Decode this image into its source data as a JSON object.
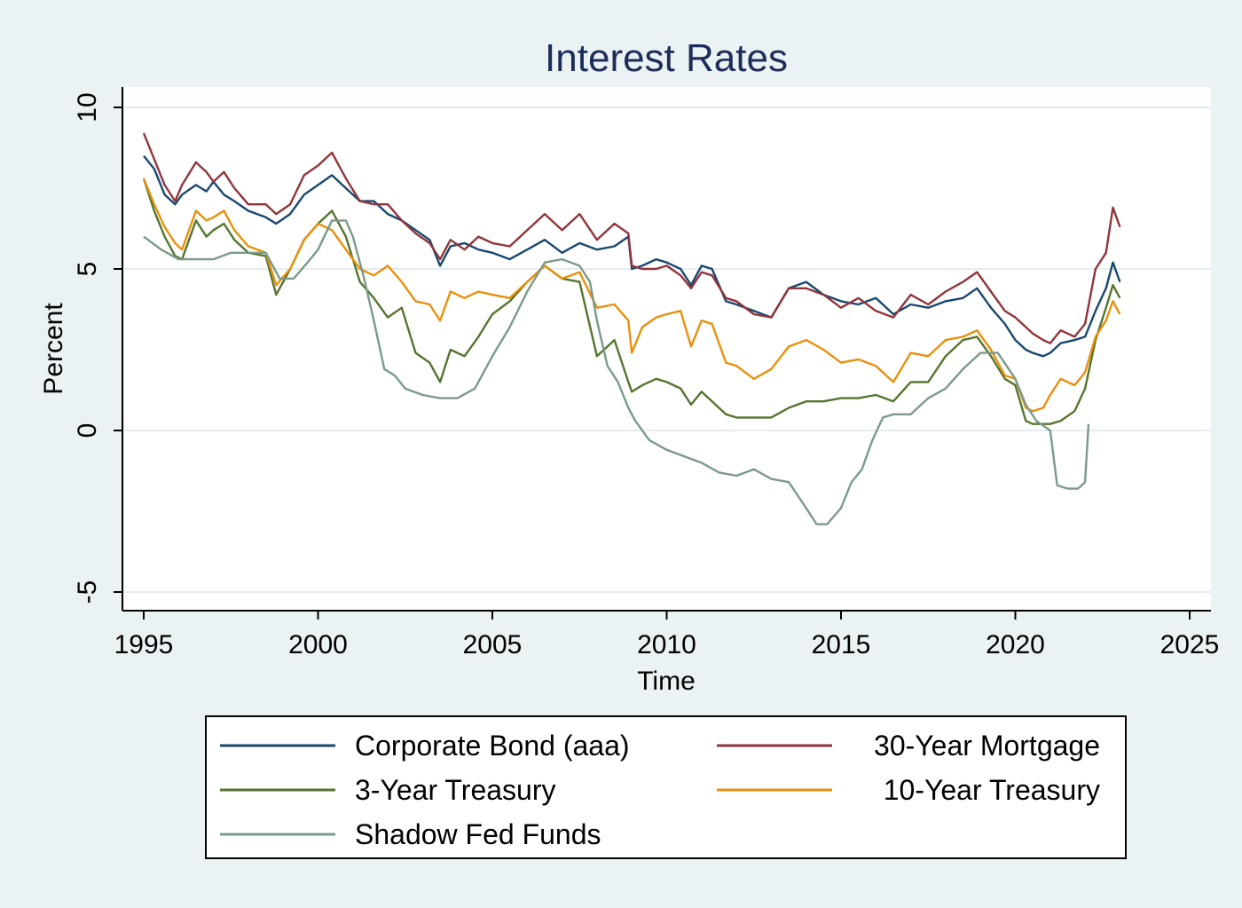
{
  "chart_data": {
    "type": "line",
    "title": "Interest Rates",
    "xlabel": "Time",
    "ylabel": "Percent",
    "xlim": [
      1995,
      2025
    ],
    "ylim": [
      -5,
      10
    ],
    "x_ticks": [
      1995,
      2000,
      2005,
      2010,
      2015,
      2020,
      2025
    ],
    "y_ticks": [
      -5,
      0,
      5,
      10
    ],
    "grid": "horizontal",
    "legend_position": "bottom",
    "background": "#eaf2f3",
    "plot_background": "#ffffff",
    "series": [
      {
        "name": "Corporate Bond (aaa)",
        "color": "#1a476f",
        "x": [
          1995.0,
          1995.3,
          1995.6,
          1995.9,
          1996.1,
          1996.5,
          1996.8,
          1997.0,
          1997.3,
          1997.6,
          1998.0,
          1998.5,
          1998.8,
          1999.2,
          1999.6,
          2000.0,
          2000.4,
          2000.8,
          2001.2,
          2001.6,
          2002.0,
          2002.4,
          2002.8,
          2003.2,
          2003.5,
          2003.8,
          2004.2,
          2004.6,
          2005.0,
          2005.5,
          2006.0,
          2006.5,
          2007.0,
          2007.5,
          2008.0,
          2008.5,
          2008.9,
          2009.0,
          2009.3,
          2009.7,
          2010.0,
          2010.4,
          2010.7,
          2011.0,
          2011.3,
          2011.7,
          2012.0,
          2012.5,
          2013.0,
          2013.5,
          2014.0,
          2014.5,
          2015.0,
          2015.5,
          2016.0,
          2016.5,
          2017.0,
          2017.5,
          2018.0,
          2018.5,
          2018.9,
          2019.3,
          2019.7,
          2020.0,
          2020.3,
          2020.5,
          2020.8,
          2021.0,
          2021.3,
          2021.7,
          2022.0,
          2022.3,
          2022.6,
          2022.8,
          2023.0
        ],
        "y": [
          8.5,
          8.1,
          7.3,
          7.0,
          7.3,
          7.6,
          7.4,
          7.7,
          7.3,
          7.1,
          6.8,
          6.6,
          6.4,
          6.7,
          7.3,
          7.6,
          7.9,
          7.5,
          7.1,
          7.1,
          6.7,
          6.5,
          6.2,
          5.9,
          5.1,
          5.7,
          5.8,
          5.6,
          5.5,
          5.3,
          5.6,
          5.9,
          5.5,
          5.8,
          5.6,
          5.7,
          6.0,
          5.0,
          5.1,
          5.3,
          5.2,
          5.0,
          4.5,
          5.1,
          5.0,
          4.0,
          3.9,
          3.7,
          3.5,
          4.4,
          4.6,
          4.2,
          4.0,
          3.9,
          4.1,
          3.6,
          3.9,
          3.8,
          4.0,
          4.1,
          4.4,
          3.8,
          3.3,
          2.8,
          2.5,
          2.4,
          2.3,
          2.4,
          2.7,
          2.8,
          2.9,
          3.7,
          4.4,
          5.2,
          4.6
        ]
      },
      {
        "name": "30-Year Mortgage",
        "color": "#90353b",
        "x": [
          1995.0,
          1995.3,
          1995.6,
          1995.9,
          1996.1,
          1996.5,
          1996.8,
          1997.0,
          1997.3,
          1997.6,
          1998.0,
          1998.5,
          1998.8,
          1999.2,
          1999.6,
          2000.0,
          2000.4,
          2000.8,
          2001.2,
          2001.6,
          2002.0,
          2002.4,
          2002.8,
          2003.2,
          2003.5,
          2003.8,
          2004.2,
          2004.6,
          2005.0,
          2005.5,
          2006.0,
          2006.5,
          2007.0,
          2007.5,
          2008.0,
          2008.5,
          2008.9,
          2009.0,
          2009.3,
          2009.7,
          2010.0,
          2010.4,
          2010.7,
          2011.0,
          2011.3,
          2011.7,
          2012.0,
          2012.5,
          2013.0,
          2013.5,
          2014.0,
          2014.5,
          2015.0,
          2015.5,
          2016.0,
          2016.5,
          2017.0,
          2017.5,
          2018.0,
          2018.5,
          2018.9,
          2019.3,
          2019.7,
          2020.0,
          2020.3,
          2020.5,
          2020.8,
          2021.0,
          2021.3,
          2021.7,
          2022.0,
          2022.3,
          2022.6,
          2022.8,
          2023.0
        ],
        "y": [
          9.2,
          8.4,
          7.6,
          7.1,
          7.6,
          8.3,
          8.0,
          7.7,
          8.0,
          7.5,
          7.0,
          7.0,
          6.7,
          7.0,
          7.9,
          8.2,
          8.6,
          7.8,
          7.1,
          7.0,
          7.0,
          6.5,
          6.1,
          5.8,
          5.3,
          5.9,
          5.6,
          6.0,
          5.8,
          5.7,
          6.2,
          6.7,
          6.2,
          6.7,
          5.9,
          6.4,
          6.1,
          5.1,
          5.0,
          5.0,
          5.1,
          4.8,
          4.4,
          4.9,
          4.8,
          4.1,
          4.0,
          3.6,
          3.5,
          4.4,
          4.4,
          4.2,
          3.8,
          4.1,
          3.7,
          3.5,
          4.2,
          3.9,
          4.3,
          4.6,
          4.9,
          4.3,
          3.7,
          3.5,
          3.2,
          3.0,
          2.8,
          2.7,
          3.1,
          2.9,
          3.3,
          5.0,
          5.5,
          6.9,
          6.3
        ]
      },
      {
        "name": "3-Year Treasury",
        "color": "#55752f",
        "x": [
          1995.0,
          1995.3,
          1995.6,
          1995.9,
          1996.1,
          1996.5,
          1996.8,
          1997.0,
          1997.3,
          1997.6,
          1998.0,
          1998.5,
          1998.8,
          1999.2,
          1999.6,
          2000.0,
          2000.4,
          2000.8,
          2001.2,
          2001.6,
          2002.0,
          2002.4,
          2002.8,
          2003.2,
          2003.5,
          2003.8,
          2004.2,
          2004.6,
          2005.0,
          2005.5,
          2006.0,
          2006.5,
          2007.0,
          2007.5,
          2008.0,
          2008.5,
          2008.9,
          2009.0,
          2009.3,
          2009.7,
          2010.0,
          2010.4,
          2010.7,
          2011.0,
          2011.3,
          2011.7,
          2012.0,
          2012.5,
          2013.0,
          2013.5,
          2014.0,
          2014.5,
          2015.0,
          2015.5,
          2016.0,
          2016.5,
          2017.0,
          2017.5,
          2018.0,
          2018.5,
          2018.9,
          2019.3,
          2019.7,
          2020.0,
          2020.3,
          2020.5,
          2020.8,
          2021.0,
          2021.3,
          2021.7,
          2022.0,
          2022.3,
          2022.6,
          2022.8,
          2023.0
        ],
        "y": [
          7.8,
          6.8,
          6.0,
          5.4,
          5.3,
          6.5,
          6.0,
          6.2,
          6.4,
          5.9,
          5.5,
          5.4,
          4.2,
          5.0,
          5.9,
          6.4,
          6.8,
          6.0,
          4.6,
          4.1,
          3.5,
          3.8,
          2.4,
          2.1,
          1.5,
          2.5,
          2.3,
          2.9,
          3.6,
          4.0,
          4.6,
          5.1,
          4.7,
          4.6,
          2.3,
          2.8,
          1.5,
          1.2,
          1.4,
          1.6,
          1.5,
          1.3,
          0.8,
          1.2,
          0.9,
          0.5,
          0.4,
          0.4,
          0.4,
          0.7,
          0.9,
          0.9,
          1.0,
          1.0,
          1.1,
          0.9,
          1.5,
          1.5,
          2.3,
          2.8,
          2.9,
          2.3,
          1.6,
          1.4,
          0.3,
          0.2,
          0.2,
          0.2,
          0.3,
          0.6,
          1.3,
          2.8,
          3.8,
          4.5,
          4.1
        ]
      },
      {
        "name": "10-Year Treasury",
        "color": "#e8900c",
        "x": [
          1995.0,
          1995.3,
          1995.6,
          1995.9,
          1996.1,
          1996.5,
          1996.8,
          1997.0,
          1997.3,
          1997.6,
          1998.0,
          1998.5,
          1998.8,
          1999.2,
          1999.6,
          2000.0,
          2000.4,
          2000.8,
          2001.2,
          2001.6,
          2002.0,
          2002.4,
          2002.8,
          2003.2,
          2003.5,
          2003.8,
          2004.2,
          2004.6,
          2005.0,
          2005.5,
          2006.0,
          2006.5,
          2007.0,
          2007.5,
          2008.0,
          2008.5,
          2008.9,
          2009.0,
          2009.3,
          2009.7,
          2010.0,
          2010.4,
          2010.7,
          2011.0,
          2011.3,
          2011.7,
          2012.0,
          2012.5,
          2013.0,
          2013.5,
          2014.0,
          2014.5,
          2015.0,
          2015.5,
          2016.0,
          2016.5,
          2017.0,
          2017.5,
          2018.0,
          2018.5,
          2018.9,
          2019.3,
          2019.7,
          2020.0,
          2020.3,
          2020.5,
          2020.8,
          2021.0,
          2021.3,
          2021.7,
          2022.0,
          2022.3,
          2022.6,
          2022.8,
          2023.0
        ],
        "y": [
          7.8,
          7.0,
          6.3,
          5.8,
          5.6,
          6.8,
          6.5,
          6.6,
          6.8,
          6.2,
          5.7,
          5.5,
          4.5,
          5.0,
          5.9,
          6.4,
          6.2,
          5.6,
          5.0,
          4.8,
          5.1,
          4.6,
          4.0,
          3.9,
          3.4,
          4.3,
          4.1,
          4.3,
          4.2,
          4.1,
          4.6,
          5.1,
          4.7,
          4.9,
          3.8,
          3.9,
          3.4,
          2.4,
          3.2,
          3.5,
          3.6,
          3.7,
          2.6,
          3.4,
          3.3,
          2.1,
          2.0,
          1.6,
          1.9,
          2.6,
          2.8,
          2.5,
          2.1,
          2.2,
          2.0,
          1.5,
          2.4,
          2.3,
          2.8,
          2.9,
          3.1,
          2.5,
          1.7,
          1.6,
          0.7,
          0.6,
          0.7,
          1.1,
          1.6,
          1.4,
          1.8,
          2.9,
          3.4,
          4.0,
          3.6
        ]
      },
      {
        "name": "Shadow Fed Funds",
        "color": "#7b9a8a",
        "x": [
          1995.0,
          1995.5,
          1996.0,
          1996.5,
          1997.0,
          1997.5,
          1998.0,
          1998.5,
          1998.9,
          1999.3,
          1999.7,
          2000.0,
          2000.4,
          2000.8,
          2001.0,
          2001.3,
          2001.6,
          2001.9,
          2002.2,
          2002.5,
          2003.0,
          2003.5,
          2004.0,
          2004.5,
          2005.0,
          2005.5,
          2006.0,
          2006.5,
          2007.0,
          2007.5,
          2007.8,
          2008.0,
          2008.3,
          2008.6,
          2008.9,
          2009.1,
          2009.5,
          2010.0,
          2010.5,
          2011.0,
          2011.5,
          2012.0,
          2012.5,
          2013.0,
          2013.5,
          2014.0,
          2014.3,
          2014.6,
          2015.0,
          2015.3,
          2015.6,
          2015.9,
          2016.2,
          2016.5,
          2017.0,
          2017.5,
          2018.0,
          2018.5,
          2019.0,
          2019.5,
          2020.0,
          2020.3,
          2020.6,
          2021.0,
          2021.2,
          2021.5,
          2021.8,
          2022.0,
          2022.1
        ],
        "y": [
          6.0,
          5.6,
          5.3,
          5.3,
          5.3,
          5.5,
          5.5,
          5.5,
          4.7,
          4.7,
          5.2,
          5.6,
          6.5,
          6.5,
          6.0,
          4.8,
          3.4,
          1.9,
          1.7,
          1.3,
          1.1,
          1.0,
          1.0,
          1.3,
          2.3,
          3.2,
          4.3,
          5.2,
          5.3,
          5.1,
          4.6,
          3.4,
          2.0,
          1.5,
          0.7,
          0.3,
          -0.3,
          -0.6,
          -0.8,
          -1.0,
          -1.3,
          -1.4,
          -1.2,
          -1.5,
          -1.6,
          -2.4,
          -2.9,
          -2.9,
          -2.4,
          -1.6,
          -1.2,
          -0.3,
          0.4,
          0.5,
          0.5,
          1.0,
          1.3,
          1.9,
          2.4,
          2.4,
          1.6,
          0.8,
          0.3,
          0.0,
          -1.7,
          -1.8,
          -1.8,
          -1.6,
          0.2
        ]
      }
    ]
  }
}
